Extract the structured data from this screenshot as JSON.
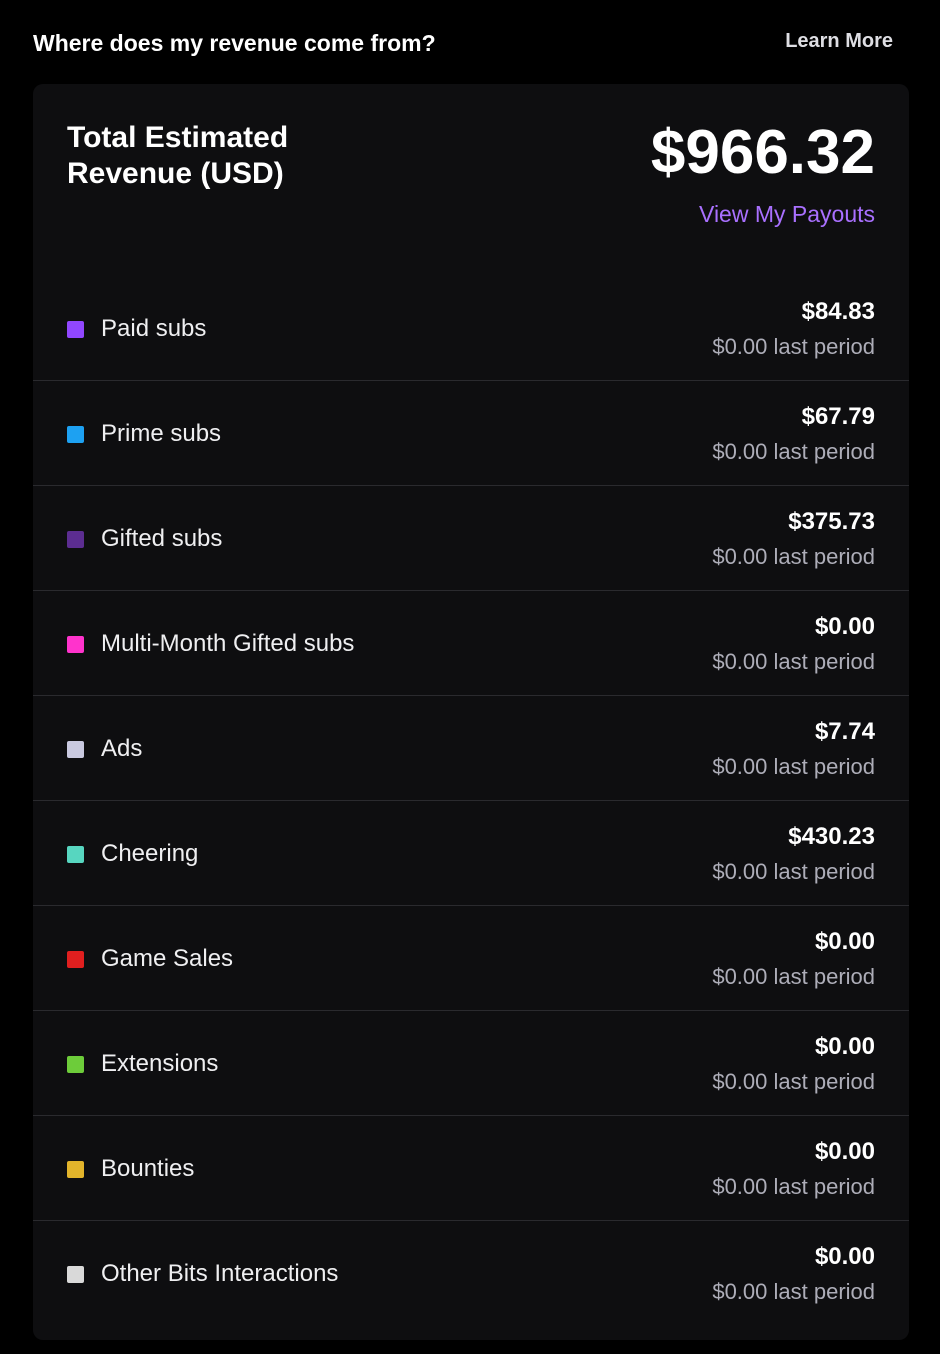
{
  "header": {
    "title": "Where does my revenue come from?",
    "learn_more": "Learn More"
  },
  "summary": {
    "label": "Total Estimated Revenue (USD)",
    "amount": "$966.32",
    "payouts_link": "View My Payouts"
  },
  "rows": [
    {
      "label": "Paid subs",
      "value": "$84.83",
      "last_period": "$0.00 last period",
      "color": "#9147ff"
    },
    {
      "label": "Prime subs",
      "value": "$67.79",
      "last_period": "$0.00 last period",
      "color": "#1da1f2"
    },
    {
      "label": "Gifted subs",
      "value": "$375.73",
      "last_period": "$0.00 last period",
      "color": "#5c2d91"
    },
    {
      "label": "Multi-Month Gifted subs",
      "value": "$0.00",
      "last_period": "$0.00 last period",
      "color": "#ff33cc"
    },
    {
      "label": "Ads",
      "value": "$7.74",
      "last_period": "$0.00 last period",
      "color": "#c9c9e0"
    },
    {
      "label": "Cheering",
      "value": "$430.23",
      "last_period": "$0.00 last period",
      "color": "#57d6c0"
    },
    {
      "label": "Game Sales",
      "value": "$0.00",
      "last_period": "$0.00 last period",
      "color": "#e01f1f"
    },
    {
      "label": "Extensions",
      "value": "$0.00",
      "last_period": "$0.00 last period",
      "color": "#6dcc3a"
    },
    {
      "label": "Bounties",
      "value": "$0.00",
      "last_period": "$0.00 last period",
      "color": "#e2b42b"
    },
    {
      "label": "Other Bits Interactions",
      "value": "$0.00",
      "last_period": "$0.00 last period",
      "color": "#d9d9d9"
    }
  ]
}
